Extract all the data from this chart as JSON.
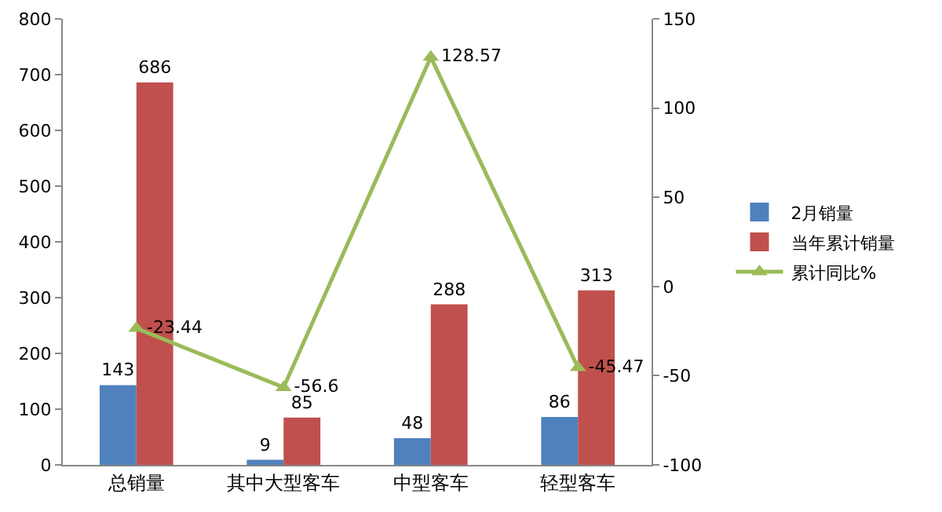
{
  "chart_data": {
    "type": "bar",
    "categories": [
      "总销量",
      "其中大型客车",
      "中型客车",
      "轻型客车"
    ],
    "series": [
      {
        "name": "2月销量",
        "color": "#4f81bd",
        "values": [
          143,
          9,
          48,
          86
        ]
      },
      {
        "name": "当年累计销量",
        "color": "#c0504d",
        "values": [
          686,
          85,
          288,
          313
        ]
      },
      {
        "name": "累计同比%",
        "type": "line",
        "axis": "y2",
        "color": "#9bbb59",
        "values": [
          -23.44,
          -56.6,
          128.57,
          -45.47
        ]
      }
    ],
    "ylim": [
      0,
      800
    ],
    "yticks": [
      0,
      100,
      200,
      300,
      400,
      500,
      600,
      700,
      800
    ],
    "y2lim": [
      -100,
      150
    ],
    "y2ticks": [
      -100,
      -50,
      0,
      50,
      100,
      150
    ],
    "data_labels": true,
    "legend": "right",
    "marker": "triangle",
    "grid": false
  }
}
